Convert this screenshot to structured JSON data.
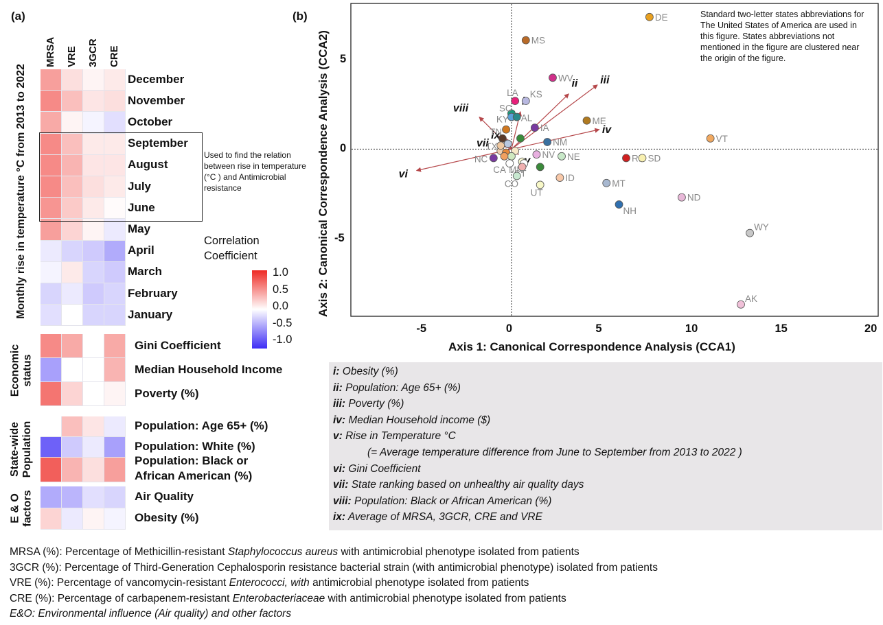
{
  "panel_a": {
    "label": "(a)",
    "columns": [
      "MRSA",
      "VRE",
      "3GCR",
      "CRE"
    ],
    "groups": [
      {
        "title": "Monthly rise in temperature °C from 2013 to 2022",
        "rows": [
          {
            "label": "December",
            "values": [
              0.45,
              0.15,
              0.05,
              0.1
            ]
          },
          {
            "label": "November",
            "values": [
              0.55,
              0.3,
              0.12,
              0.15
            ]
          },
          {
            "label": "October",
            "values": [
              0.4,
              0.05,
              -0.05,
              -0.15
            ]
          },
          {
            "label": "September",
            "values": [
              0.55,
              0.3,
              0.1,
              0.1
            ]
          },
          {
            "label": "August",
            "values": [
              0.55,
              0.35,
              0.12,
              0.12
            ]
          },
          {
            "label": "July",
            "values": [
              0.55,
              0.3,
              0.15,
              0.1
            ]
          },
          {
            "label": "June",
            "values": [
              0.5,
              0.25,
              0.1,
              0.02
            ]
          },
          {
            "label": "May",
            "values": [
              0.45,
              0.2,
              0.05,
              -0.1
            ]
          },
          {
            "label": "April",
            "values": [
              -0.1,
              -0.2,
              -0.25,
              -0.4
            ]
          },
          {
            "label": "March",
            "values": [
              -0.05,
              0.1,
              -0.2,
              -0.25
            ]
          },
          {
            "label": "February",
            "values": [
              -0.2,
              -0.1,
              -0.25,
              -0.2
            ]
          },
          {
            "label": "January",
            "values": [
              -0.15,
              0.0,
              -0.2,
              -0.2
            ]
          }
        ]
      },
      {
        "title": "Economic status",
        "rows": [
          {
            "label": "Gini Coefficient",
            "values": [
              0.55,
              0.4,
              0.0,
              0.4
            ]
          },
          {
            "label": "Median Household Income",
            "values": [
              -0.45,
              0.0,
              0.0,
              0.35
            ]
          },
          {
            "label": "Poverty (%)",
            "values": [
              0.65,
              0.2,
              0.0,
              0.05
            ]
          }
        ]
      },
      {
        "title": "State-wide Population",
        "rows": [
          {
            "label": "Population: Age 65+ (%)",
            "values": [
              0.0,
              0.3,
              0.12,
              -0.1
            ]
          },
          {
            "label": "Population: White (%)",
            "values": [
              -0.75,
              -0.25,
              -0.1,
              -0.45
            ]
          },
          {
            "label": "Population: Black or African American (%)",
            "values": [
              0.75,
              0.35,
              0.15,
              0.45
            ]
          }
        ]
      },
      {
        "title": "E & O factors",
        "rows": [
          {
            "label": "Air Quality",
            "values": [
              -0.4,
              -0.35,
              -0.15,
              -0.2
            ]
          },
          {
            "label": "Obesity (%)",
            "values": [
              0.2,
              -0.1,
              0.05,
              -0.05
            ]
          }
        ]
      }
    ],
    "highlight_note": "Used to find the relation between rise in temperature (°C ) and Antimicrobial resistance",
    "colorbar": {
      "title": "Correlation Coefficient",
      "ticks": [
        "1.0",
        "0.5",
        "0.0",
        "-0.5",
        "-1.0"
      ],
      "color_pos": "#ee2a24",
      "color_zero": "#ffffff",
      "color_neg": "#3d2cf5"
    }
  },
  "panel_b": {
    "label": "(b)",
    "note": "Standard two-letter states abbreviations for The United States of America are used in this figure. States abbreviations not mentioned in the figure are clustered near the origin of the figure.",
    "legend": [
      {
        "key": "i:",
        "text": "Obesity  (%)"
      },
      {
        "key": "ii:",
        "text": "Population: Age 65+ (%)"
      },
      {
        "key": "iii:",
        "text": "Poverty (%)"
      },
      {
        "key": "iv:",
        "text": "Median Household income ($)"
      },
      {
        "key": "v:",
        "text": "Rise in Temperature °C"
      },
      {
        "key": "",
        "text": "(= Average temperature difference from June to September from 2013 to 2022 )"
      },
      {
        "key": "vi:",
        "text": "Gini Coefficient"
      },
      {
        "key": "vii:",
        "text": "State ranking based on unhealthy air quality days"
      },
      {
        "key": "viii:",
        "text": "Population: Black or African American (%)"
      },
      {
        "key": "ix:",
        "text": "Average of MRSA, 3GCR, CRE and VRE"
      }
    ]
  },
  "footnotes": [
    {
      "pre": "MRSA (%): Percentage of Methicillin-resistant ",
      "em": "Staphylococcus aureus",
      "post": " with antimicrobial phenotype isolated from patients"
    },
    {
      "pre": "3GCR (%): Percentage of Third-Generation Cephalosporin resistance bacterial strain (with antimicrobial phenotype) isolated from patients",
      "em": "",
      "post": ""
    },
    {
      "pre": "VRE (%): Percentage of vancomycin-resistant ",
      "em": "Enterococci, with",
      "post": " antimicrobial phenotype isolated from patients"
    },
    {
      "pre": "CRE (%): Percentage of carbapenem-resistant ",
      "em": "Enterobacteriaceae",
      "post": " with antimicrobial phenotype isolated from patients"
    },
    {
      "pre": "",
      "em": "E&O: Environmental influence (Air quality) and other factors",
      "post": ""
    }
  ],
  "chart_data": {
    "type": "scatter",
    "xlabel": "Axis 1: Canonical Correspondence Analysis (CCA1)",
    "ylabel": "Axis 2: Canonical Correspondence Analysis (CCA2)",
    "xlim": [
      -9,
      20.5
    ],
    "ylim": [
      -9.4,
      8.2
    ],
    "xticks": [
      -5,
      0,
      5,
      10,
      15,
      20
    ],
    "yticks": [
      -5,
      0,
      5
    ],
    "points": [
      {
        "label": "DE",
        "x": 7.7,
        "y": 7.4,
        "color": "#e8a020"
      },
      {
        "label": "MS",
        "x": 0.8,
        "y": 6.1,
        "color": "#b86a28"
      },
      {
        "label": "WV",
        "x": 2.3,
        "y": 4.0,
        "color": "#d0308a"
      },
      {
        "label": "LA",
        "x": 0.2,
        "y": 2.7,
        "color": "#e8207a"
      },
      {
        "label": "KS",
        "x": 0.8,
        "y": 2.7,
        "color": "#b8b8e0"
      },
      {
        "label": "SC",
        "x": 0.0,
        "y": 2.0,
        "color": "#1a9a7a"
      },
      {
        "label": "KY",
        "x": 0.0,
        "y": 1.8,
        "color": "#5aa0d8"
      },
      {
        "label": "AL",
        "x": 0.3,
        "y": 1.8,
        "color": "#2a8a8a"
      },
      {
        "label": "ME",
        "x": 4.2,
        "y": 1.6,
        "color": "#b07a20"
      },
      {
        "label": "TN",
        "x": -0.3,
        "y": 1.1,
        "color": "#d07820"
      },
      {
        "label": "IA",
        "x": 1.3,
        "y": 1.2,
        "color": "#7a3aa0"
      },
      {
        "label": "VT",
        "x": 11.1,
        "y": 0.6,
        "color": "#f0a860"
      },
      {
        "label": "NM",
        "x": 2.0,
        "y": 0.4,
        "color": "#3a70a0"
      },
      {
        "label": "TX",
        "x": -0.6,
        "y": 0.2,
        "color": "#f0c8a0"
      },
      {
        "label": "NC",
        "x": -1.0,
        "y": -0.5,
        "color": "#7a3aa0"
      },
      {
        "label": "NV",
        "x": 1.4,
        "y": -0.3,
        "color": "#e8b0e0"
      },
      {
        "label": "NE",
        "x": 2.8,
        "y": -0.4,
        "color": "#c8e8c8"
      },
      {
        "label": "RI",
        "x": 6.4,
        "y": -0.5,
        "color": "#d02020"
      },
      {
        "label": "SD",
        "x": 7.3,
        "y": -0.5,
        "color": "#f8f0b0"
      },
      {
        "label": "CA",
        "x": -0.1,
        "y": -0.8,
        "color": "#ffffff"
      },
      {
        "label": "MN",
        "x": 0.7,
        "y": -0.8,
        "color": "#ffffff"
      },
      {
        "label": "CT",
        "x": 0.6,
        "y": -1.0,
        "color": "#f0b0b0"
      },
      {
        "label": "CO",
        "x": 0.3,
        "y": -1.5,
        "color": "#c8e8d0"
      },
      {
        "label": "ID",
        "x": 2.7,
        "y": -1.6,
        "color": "#f8c8a8"
      },
      {
        "label": "UT",
        "x": 1.6,
        "y": -2.0,
        "color": "#f8f8c8"
      },
      {
        "label": "MT",
        "x": 5.3,
        "y": -1.9,
        "color": "#a8b8d0"
      },
      {
        "label": "NH",
        "x": 6.0,
        "y": -3.1,
        "color": "#3070b0"
      },
      {
        "label": "ND",
        "x": 9.5,
        "y": -2.7,
        "color": "#e8b8d8"
      },
      {
        "label": "WY",
        "x": 13.3,
        "y": -4.7,
        "color": "#c8c8c8"
      },
      {
        "label": "AK",
        "x": 12.8,
        "y": -8.7,
        "color": "#f0c0d8"
      }
    ],
    "unlabeled_points": [
      {
        "x": -0.5,
        "y": 0.6,
        "color": "#5a3a2a"
      },
      {
        "x": 0.5,
        "y": 0.6,
        "color": "#3a8a3a"
      },
      {
        "x": -0.2,
        "y": 0.3,
        "color": "#b8c8e0"
      },
      {
        "x": -0.6,
        "y": -0.1,
        "color": "#f0d0b0"
      },
      {
        "x": -0.3,
        "y": -0.2,
        "color": "#e88838"
      },
      {
        "x": 0.2,
        "y": -0.1,
        "color": "#f8e8c8"
      },
      {
        "x": 0.0,
        "y": -0.4,
        "color": "#d0e8c0"
      },
      {
        "x": 0.6,
        "y": -0.7,
        "color": "#f8f8d0"
      },
      {
        "x": 1.6,
        "y": -1.0,
        "color": "#3a8a3a"
      },
      {
        "x": -0.4,
        "y": -0.4,
        "color": "#f0a060"
      }
    ],
    "arrows": [
      {
        "label": "i",
        "x": 0.5,
        "y": 2.1
      },
      {
        "label": "ii",
        "x": 3.2,
        "y": 3.1
      },
      {
        "label": "iii",
        "x": 4.8,
        "y": 3.6
      },
      {
        "label": "iv",
        "x": 4.9,
        "y": 1.1
      },
      {
        "label": "v",
        "x": 0.4,
        "y": -0.3
      },
      {
        "label": "vi",
        "x": -5.3,
        "y": -1.2
      },
      {
        "label": "vii",
        "x": -0.8,
        "y": 0.3
      },
      {
        "label": "viii",
        "x": -1.8,
        "y": 1.8
      },
      {
        "label": "ix",
        "x": -0.3,
        "y": 0.6
      }
    ]
  }
}
